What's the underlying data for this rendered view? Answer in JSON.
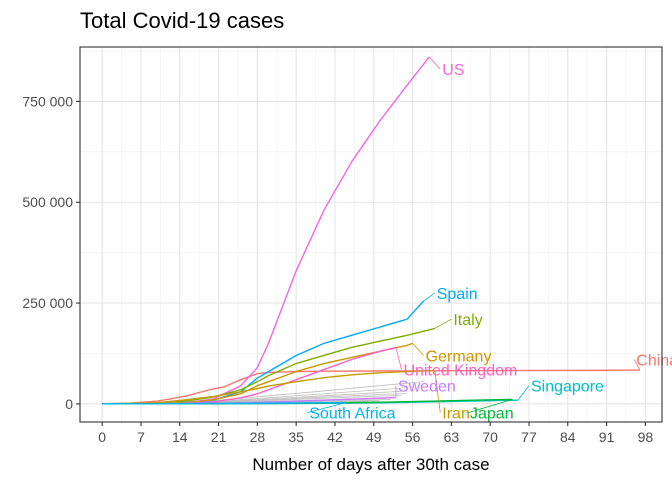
{
  "chart_data": {
    "type": "line",
    "title": "Total Covid-19 cases",
    "xlabel": "Number of days after 30th case",
    "ylabel": "",
    "xlim": [
      -4,
      101
    ],
    "ylim": [
      -45000,
      885000
    ],
    "x_ticks": [
      0,
      7,
      14,
      21,
      28,
      35,
      42,
      49,
      56,
      63,
      70,
      77,
      84,
      91,
      98
    ],
    "y_ticks": [
      0,
      250000,
      500000,
      750000
    ],
    "y_tick_labels": [
      "0",
      "250 000",
      "500 000",
      "750 000"
    ],
    "grid": true,
    "legend": "none (direct labels)",
    "series": [
      {
        "name": "China",
        "color": "#F8766D",
        "x": [
          0,
          5,
          10,
          15,
          18,
          20,
          22,
          25,
          28,
          30,
          35,
          40,
          50,
          60,
          70,
          80,
          90,
          97
        ],
        "y": [
          0,
          1500,
          7000,
          19000,
          30000,
          37000,
          42000,
          60000,
          75000,
          78000,
          80000,
          81000,
          81500,
          82000,
          82500,
          82800,
          83000,
          84000
        ],
        "label_pos": [
          96,
          110000
        ]
      },
      {
        "name": "US",
        "color": "#F564E3",
        "x": [
          0,
          10,
          15,
          20,
          25,
          28,
          30,
          35,
          40,
          45,
          50,
          55,
          59
        ],
        "y": [
          0,
          800,
          3000,
          12000,
          45000,
          90000,
          150000,
          330000,
          480000,
          600000,
          700000,
          790000,
          860000
        ],
        "label_pos": [
          61,
          830000
        ]
      },
      {
        "name": "Spain",
        "color": "#00A9FF",
        "x": [
          0,
          10,
          15,
          20,
          25,
          28,
          30,
          35,
          40,
          45,
          50,
          55,
          58
        ],
        "y": [
          0,
          300,
          2000,
          9000,
          30000,
          64000,
          80000,
          120000,
          150000,
          170000,
          190000,
          210000,
          255000
        ],
        "label_pos": [
          60,
          275000
        ]
      },
      {
        "name": "Italy",
        "color": "#7CAE00",
        "x": [
          0,
          10,
          15,
          20,
          25,
          28,
          30,
          35,
          40,
          45,
          50,
          55,
          60
        ],
        "y": [
          0,
          2000,
          7000,
          17000,
          35000,
          55000,
          70000,
          100000,
          120000,
          140000,
          155000,
          170000,
          187000
        ],
        "label_pos": [
          63,
          210000
        ]
      },
      {
        "name": "Germany",
        "color": "#CD9600",
        "x": [
          0,
          10,
          15,
          20,
          25,
          28,
          30,
          35,
          40,
          45,
          50,
          55,
          56
        ],
        "y": [
          0,
          1000,
          3000,
          10000,
          25000,
          45000,
          55000,
          80000,
          100000,
          115000,
          130000,
          145000,
          150000
        ],
        "label_pos": [
          58,
          120000
        ]
      },
      {
        "name": "United Kingdom",
        "color": "#FF61C3",
        "x": [
          0,
          10,
          15,
          20,
          25,
          28,
          30,
          35,
          40,
          45,
          50,
          53
        ],
        "y": [
          0,
          200,
          1500,
          5000,
          15000,
          25000,
          35000,
          60000,
          85000,
          110000,
          130000,
          140000
        ],
        "label_pos": [
          54,
          85000
        ]
      },
      {
        "name": "Iran",
        "color": "#C49A00",
        "x": [
          0,
          10,
          15,
          20,
          25,
          28,
          30,
          35,
          40,
          45,
          50,
          55,
          60
        ],
        "y": [
          0,
          3000,
          10000,
          18000,
          30000,
          38000,
          44000,
          55000,
          65000,
          72000,
          77000,
          80000,
          83000
        ],
        "label_pos": [
          61,
          -22000
        ]
      },
      {
        "name": "Sweden",
        "color": "#C77CFF",
        "x": [
          0,
          10,
          20,
          30,
          40,
          50,
          53
        ],
        "y": [
          0,
          500,
          1500,
          4000,
          9000,
          14000,
          16000
        ],
        "label_pos": [
          53,
          45000
        ]
      },
      {
        "name": "Singapore",
        "color": "#00BFC4",
        "x": [
          0,
          10,
          20,
          30,
          40,
          50,
          60,
          70,
          75
        ],
        "y": [
          0,
          100,
          200,
          500,
          1300,
          2500,
          5000,
          8000,
          9000
        ],
        "label_pos": [
          77,
          45000
        ]
      },
      {
        "name": "Japan",
        "color": "#00BA38",
        "x": [
          0,
          10,
          20,
          30,
          40,
          50,
          60,
          70,
          74
        ],
        "y": [
          0,
          300,
          700,
          1200,
          2000,
          4000,
          7000,
          10000,
          11000
        ],
        "label_pos": [
          66,
          -22000
        ]
      },
      {
        "name": "South Africa",
        "color": "#00B4EF",
        "x": [
          0,
          10,
          20,
          30,
          40,
          44
        ],
        "y": [
          0,
          200,
          1000,
          1500,
          2500,
          3300
        ],
        "label_pos": [
          37,
          -22000
        ]
      }
    ],
    "background_series_color": "#BEBEBE",
    "background_series": [
      {
        "x": [
          0,
          20,
          30,
          40,
          50,
          58
        ],
        "y": [
          0,
          8000,
          20000,
          32000,
          45000,
          55000
        ]
      },
      {
        "x": [
          0,
          20,
          30,
          40,
          50,
          55
        ],
        "y": [
          0,
          6000,
          15000,
          25000,
          35000,
          40000
        ]
      },
      {
        "x": [
          0,
          20,
          30,
          40,
          50,
          55
        ],
        "y": [
          0,
          5000,
          12000,
          20000,
          28000,
          32000
        ]
      },
      {
        "x": [
          0,
          20,
          30,
          40,
          50,
          55
        ],
        "y": [
          0,
          4000,
          10000,
          17000,
          23000,
          26000
        ]
      },
      {
        "x": [
          0,
          20,
          30,
          40,
          50,
          54
        ],
        "y": [
          0,
          3000,
          8000,
          14000,
          19000,
          21000
        ]
      },
      {
        "x": [
          0,
          20,
          30,
          40,
          50,
          53
        ],
        "y": [
          0,
          2500,
          6000,
          10000,
          14000,
          15000
        ]
      },
      {
        "x": [
          0,
          20,
          30,
          40,
          50,
          52
        ],
        "y": [
          0,
          2000,
          4500,
          7500,
          10000,
          11000
        ]
      },
      {
        "x": [
          0,
          20,
          30,
          40,
          50
        ],
        "y": [
          0,
          1500,
          3500,
          5500,
          7500
        ]
      },
      {
        "x": [
          0,
          20,
          30,
          40,
          48
        ],
        "y": [
          0,
          1000,
          2500,
          4000,
          5000
        ]
      }
    ]
  }
}
